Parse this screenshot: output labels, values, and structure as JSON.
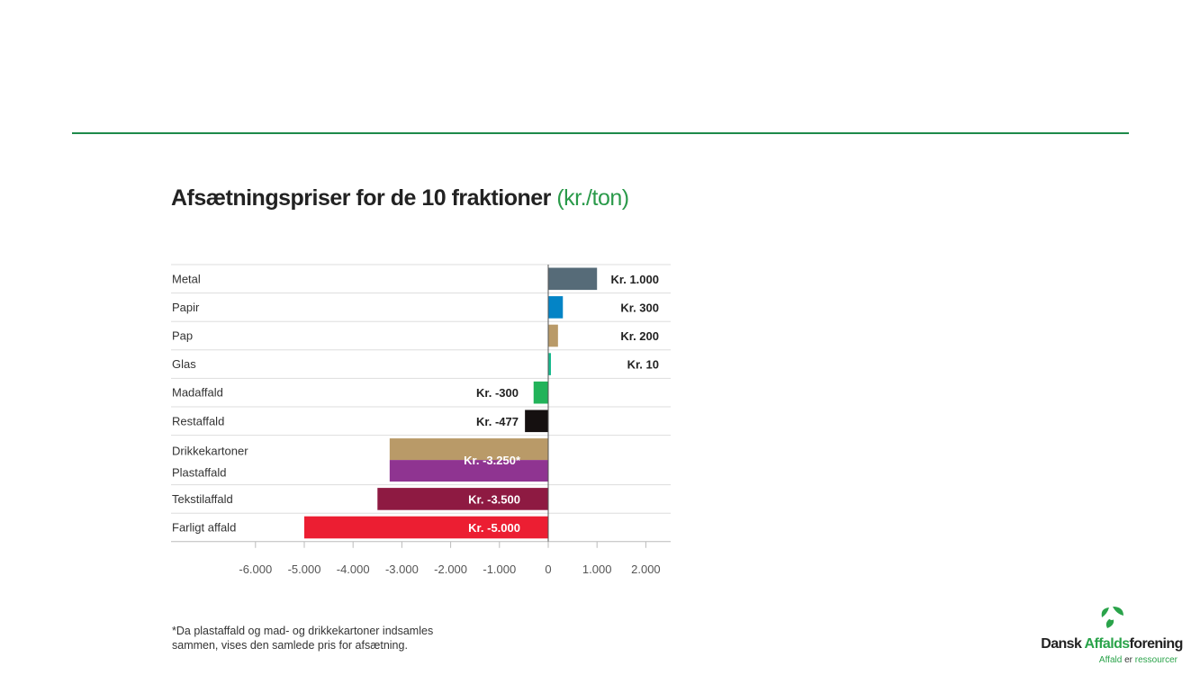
{
  "chart_data": {
    "type": "bar",
    "orientation": "horizontal",
    "title": "Afsætningspriser for de 10 fraktioner",
    "title_unit": "(kr./ton)",
    "xlabel": "",
    "ylabel": "",
    "xlim": [
      -6000,
      2000
    ],
    "x_ticks": [
      -6000,
      -5000,
      -4000,
      -3000,
      -2000,
      -1000,
      0,
      1000,
      2000
    ],
    "x_tick_labels": [
      "-6.000",
      "-5.000",
      "-4.000",
      "-3.000",
      "-2.000",
      "-1.000",
      "0",
      "1.000",
      "2.000"
    ],
    "grid": false,
    "rows": [
      {
        "categories": [
          "Metal"
        ],
        "values": [
          1000
        ],
        "colors": [
          "#566b78"
        ],
        "label": "Kr. 1.000"
      },
      {
        "categories": [
          "Papir"
        ],
        "values": [
          300
        ],
        "colors": [
          "#0384c6"
        ],
        "label": "Kr. 300"
      },
      {
        "categories": [
          "Pap"
        ],
        "values": [
          200
        ],
        "colors": [
          "#b99a68"
        ],
        "label": "Kr. 200"
      },
      {
        "categories": [
          "Glas"
        ],
        "values": [
          10
        ],
        "colors": [
          "#18b98d"
        ],
        "label": "Kr. 10"
      },
      {
        "categories": [
          "Madaffald"
        ],
        "values": [
          -300
        ],
        "colors": [
          "#22b35a"
        ],
        "label": "Kr. -300"
      },
      {
        "categories": [
          "Restaffald"
        ],
        "values": [
          -477
        ],
        "colors": [
          "#151010"
        ],
        "label": "Kr. -477"
      },
      {
        "categories": [
          "Drikkekartoner",
          "Plastaffald"
        ],
        "values": [
          -3250,
          -3250
        ],
        "colors": [
          "#b99a68",
          "#8f3491"
        ],
        "label": "Kr. -3.250*"
      },
      {
        "categories": [
          "Tekstilaffald"
        ],
        "values": [
          -3500
        ],
        "colors": [
          "#8e1a42"
        ],
        "label": "Kr. -3.500"
      },
      {
        "categories": [
          "Farligt affald"
        ],
        "values": [
          -5000
        ],
        "colors": [
          "#ec1e32"
        ],
        "label": "Kr. -5.000"
      }
    ]
  },
  "footnote": "*Da plastaffald og mad- og drikkekartoner indsamles sammen, vises den samlede pris for afsætning.",
  "logo": {
    "name_1": "Dansk ",
    "name_2": "Affalds",
    "name_3": "forening",
    "tag_1": "Affald ",
    "tag_2": "er ",
    "tag_3": "ressourcer"
  }
}
